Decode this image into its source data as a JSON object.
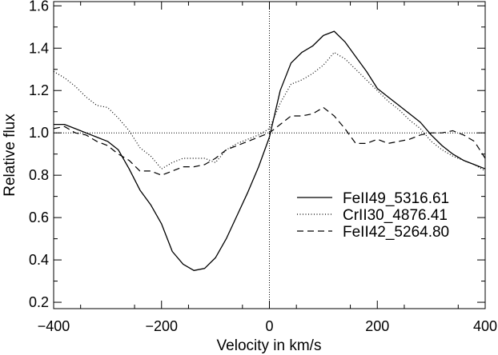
{
  "chart_data": {
    "type": "line",
    "title": "",
    "xlabel": "Velocity in km/s",
    "ylabel": "Relative flux",
    "xlim": [
      -400,
      400
    ],
    "ylim": [
      0.17,
      1.62
    ],
    "x_ticks": [
      -400,
      -200,
      0,
      200,
      400
    ],
    "x_tick_labels": [
      "−400",
      "−200",
      "0",
      "200",
      "400"
    ],
    "y_ticks": [
      0.2,
      0.4,
      0.6,
      0.8,
      1.0,
      1.2,
      1.4,
      1.6
    ],
    "y_tick_labels": [
      "0.2",
      "0.4",
      "0.6",
      "0.8",
      "1.0",
      "1.2",
      "1.4",
      "1.6"
    ],
    "grid": false,
    "legend_position": "center-right",
    "reference_lines": {
      "horizontal_y": 1.0,
      "vertical_x": 0
    },
    "series": [
      {
        "name": "FeII49_5316.61",
        "style": "solid",
        "x": [
          -400,
          -380,
          -360,
          -340,
          -320,
          -300,
          -280,
          -260,
          -240,
          -220,
          -200,
          -180,
          -160,
          -140,
          -120,
          -100,
          -80,
          -60,
          -40,
          -20,
          0,
          20,
          40,
          60,
          80,
          100,
          120,
          140,
          160,
          180,
          200,
          220,
          240,
          260,
          280,
          300,
          320,
          340,
          360,
          380,
          400
        ],
        "values": [
          1.04,
          1.04,
          1.02,
          1.0,
          0.98,
          0.96,
          0.92,
          0.83,
          0.73,
          0.66,
          0.57,
          0.44,
          0.38,
          0.35,
          0.36,
          0.41,
          0.5,
          0.61,
          0.72,
          0.84,
          0.98,
          1.2,
          1.33,
          1.38,
          1.41,
          1.46,
          1.48,
          1.43,
          1.36,
          1.29,
          1.21,
          1.17,
          1.13,
          1.09,
          1.05,
          0.99,
          0.94,
          0.9,
          0.87,
          0.85,
          0.83
        ]
      },
      {
        "name": "CrII30_4876.41",
        "style": "dotted",
        "x": [
          -400,
          -380,
          -360,
          -340,
          -320,
          -300,
          -280,
          -260,
          -240,
          -220,
          -200,
          -180,
          -160,
          -140,
          -120,
          -100,
          -80,
          -60,
          -40,
          -20,
          0,
          20,
          40,
          60,
          80,
          100,
          120,
          140,
          160,
          180,
          200,
          220,
          240,
          260,
          280,
          300,
          320,
          340,
          360,
          380,
          400
        ],
        "values": [
          1.29,
          1.26,
          1.22,
          1.17,
          1.13,
          1.12,
          1.07,
          1.01,
          0.93,
          0.89,
          0.83,
          0.86,
          0.88,
          0.88,
          0.88,
          0.86,
          0.92,
          0.95,
          0.97,
          0.99,
          1.02,
          1.14,
          1.23,
          1.25,
          1.28,
          1.32,
          1.38,
          1.35,
          1.3,
          1.25,
          1.2,
          1.15,
          1.11,
          1.06,
          1.02,
          0.96,
          0.92,
          0.89,
          0.87,
          0.85,
          0.82
        ]
      },
      {
        "name": "FeII42_5264.80",
        "style": "dashed",
        "x": [
          -400,
          -380,
          -360,
          -340,
          -320,
          -300,
          -280,
          -260,
          -240,
          -220,
          -200,
          -180,
          -160,
          -140,
          -120,
          -100,
          -80,
          -60,
          -40,
          -20,
          0,
          20,
          40,
          60,
          80,
          100,
          120,
          140,
          160,
          180,
          200,
          220,
          240,
          260,
          280,
          300,
          320,
          340,
          360,
          380,
          400
        ],
        "values": [
          1.02,
          1.03,
          1.0,
          0.99,
          0.96,
          0.94,
          0.9,
          0.87,
          0.82,
          0.82,
          0.8,
          0.82,
          0.84,
          0.84,
          0.85,
          0.88,
          0.92,
          0.94,
          0.96,
          0.98,
          1.0,
          1.04,
          1.08,
          1.08,
          1.09,
          1.12,
          1.08,
          1.02,
          0.95,
          0.95,
          0.97,
          0.95,
          0.96,
          0.97,
          0.99,
          1.0,
          1.0,
          1.01,
          0.99,
          0.96,
          0.88
        ]
      }
    ]
  }
}
